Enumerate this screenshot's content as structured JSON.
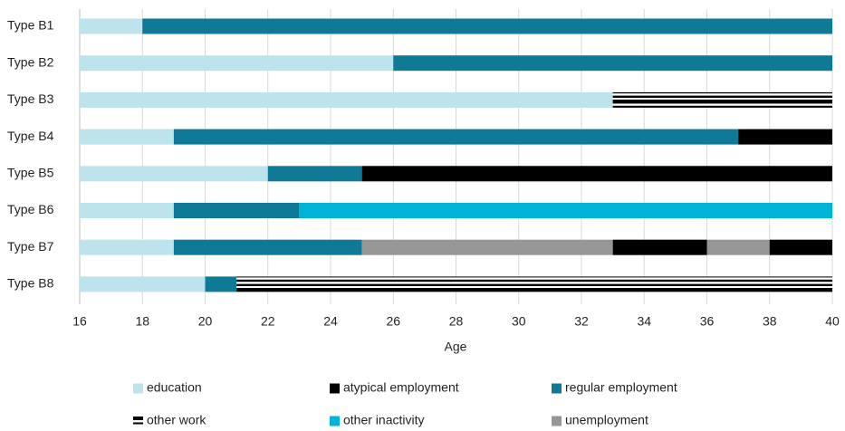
{
  "chart_data": {
    "type": "timeline-bar",
    "x_label": "Age",
    "xlim": [
      16,
      40
    ],
    "xticks": [
      16,
      18,
      20,
      22,
      24,
      26,
      28,
      30,
      32,
      34,
      36,
      38,
      40
    ],
    "grid": true,
    "series": [
      {
        "name": "education",
        "color": "#bde3ec"
      },
      {
        "name": "atypical employment",
        "color": "#000000"
      },
      {
        "name": "regular employment",
        "color": "#0e7a96"
      },
      {
        "name": "other work",
        "color": "#000000",
        "pattern": "horizontal-stripes"
      },
      {
        "name": "other inactivity",
        "color": "#00b4d8"
      },
      {
        "name": "unemployment",
        "color": "#969696"
      }
    ],
    "rows": [
      {
        "label": "Type B1",
        "segments": [
          {
            "state": "education",
            "duration": 2
          },
          {
            "state": "regular employment",
            "duration": 22
          }
        ]
      },
      {
        "label": "Type B2",
        "segments": [
          {
            "state": "education",
            "duration": 10
          },
          {
            "state": "regular employment",
            "duration": 14
          }
        ]
      },
      {
        "label": "Type B3",
        "segments": [
          {
            "state": "education",
            "duration": 17
          },
          {
            "state": "other work",
            "duration": 7
          }
        ]
      },
      {
        "label": "Type B4",
        "segments": [
          {
            "state": "education",
            "duration": 3
          },
          {
            "state": "regular employment",
            "duration": 18
          },
          {
            "state": "atypical employment",
            "duration": 3
          }
        ]
      },
      {
        "label": "Type B5",
        "segments": [
          {
            "state": "education",
            "duration": 6
          },
          {
            "state": "regular employment",
            "duration": 3
          },
          {
            "state": "atypical employment",
            "duration": 15
          }
        ]
      },
      {
        "label": "Type B6",
        "segments": [
          {
            "state": "education",
            "duration": 3
          },
          {
            "state": "regular employment",
            "duration": 4
          },
          {
            "state": "other inactivity",
            "duration": 17
          }
        ]
      },
      {
        "label": "Type B7",
        "segments": [
          {
            "state": "education",
            "duration": 3
          },
          {
            "state": "regular employment",
            "duration": 6
          },
          {
            "state": "unemployment",
            "duration": 8
          },
          {
            "state": "atypical employment",
            "duration": 3
          },
          {
            "state": "unemployment",
            "duration": 2
          },
          {
            "state": "atypical employment",
            "duration": 2
          }
        ]
      },
      {
        "label": "Type B8",
        "segments": [
          {
            "state": "education",
            "duration": 4
          },
          {
            "state": "regular employment",
            "duration": 1
          },
          {
            "state": "other work",
            "duration": 19
          }
        ]
      }
    ]
  }
}
